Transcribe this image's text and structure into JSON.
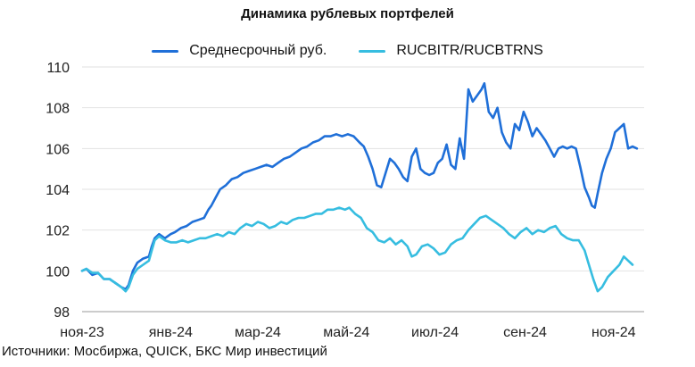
{
  "chart_data": {
    "type": "line",
    "title": "Динамика рублевых портфелей",
    "source": "Источники: Мосбиржа, QUICK, БКС Мир инвестиций",
    "ylim": [
      98,
      110
    ],
    "yticks": [
      98,
      100,
      102,
      104,
      106,
      108,
      110
    ],
    "xlim": [
      "2023-11-01",
      "2024-11-22"
    ],
    "xticks": [
      {
        "date": "2023-11-01",
        "label": "ноя-23"
      },
      {
        "date": "2024-01-01",
        "label": "янв-24"
      },
      {
        "date": "2024-03-01",
        "label": "мар-24"
      },
      {
        "date": "2024-05-01",
        "label": "май-24"
      },
      {
        "date": "2024-07-01",
        "label": "июл-24"
      },
      {
        "date": "2024-09-01",
        "label": "сен-24"
      },
      {
        "date": "2024-11-01",
        "label": "ноя-24"
      }
    ],
    "grid": "horizontal",
    "legend_position": "top",
    "series": [
      {
        "name": "Среднесрочный руб.",
        "color": "#1f6fd8",
        "points": [
          [
            "2023-11-01",
            100.0
          ],
          [
            "2023-11-04",
            100.1
          ],
          [
            "2023-11-08",
            99.8
          ],
          [
            "2023-11-12",
            99.9
          ],
          [
            "2023-11-16",
            99.6
          ],
          [
            "2023-11-20",
            99.6
          ],
          [
            "2023-11-24",
            99.4
          ],
          [
            "2023-11-28",
            99.2
          ],
          [
            "2023-12-01",
            99.1
          ],
          [
            "2023-12-03",
            99.3
          ],
          [
            "2023-12-06",
            100.0
          ],
          [
            "2023-12-09",
            100.4
          ],
          [
            "2023-12-13",
            100.6
          ],
          [
            "2023-12-17",
            100.7
          ],
          [
            "2023-12-19",
            101.2
          ],
          [
            "2023-12-21",
            101.6
          ],
          [
            "2023-12-24",
            101.8
          ],
          [
            "2023-12-28",
            101.6
          ],
          [
            "2024-01-01",
            101.8
          ],
          [
            "2024-01-04",
            101.9
          ],
          [
            "2024-01-08",
            102.1
          ],
          [
            "2024-01-12",
            102.2
          ],
          [
            "2024-01-16",
            102.4
          ],
          [
            "2024-01-20",
            102.5
          ],
          [
            "2024-01-24",
            102.6
          ],
          [
            "2024-01-27",
            103.0
          ],
          [
            "2024-01-29",
            103.2
          ],
          [
            "2024-02-01",
            103.6
          ],
          [
            "2024-02-04",
            104.0
          ],
          [
            "2024-02-08",
            104.2
          ],
          [
            "2024-02-12",
            104.5
          ],
          [
            "2024-02-16",
            104.6
          ],
          [
            "2024-02-20",
            104.8
          ],
          [
            "2024-02-24",
            104.9
          ],
          [
            "2024-02-28",
            105.0
          ],
          [
            "2024-03-03",
            105.1
          ],
          [
            "2024-03-07",
            105.2
          ],
          [
            "2024-03-11",
            105.1
          ],
          [
            "2024-03-15",
            105.3
          ],
          [
            "2024-03-19",
            105.5
          ],
          [
            "2024-03-23",
            105.6
          ],
          [
            "2024-03-27",
            105.8
          ],
          [
            "2024-03-31",
            106.0
          ],
          [
            "2024-04-04",
            106.1
          ],
          [
            "2024-04-08",
            106.3
          ],
          [
            "2024-04-12",
            106.4
          ],
          [
            "2024-04-16",
            106.6
          ],
          [
            "2024-04-20",
            106.6
          ],
          [
            "2024-04-24",
            106.7
          ],
          [
            "2024-04-28",
            106.6
          ],
          [
            "2024-05-02",
            106.7
          ],
          [
            "2024-05-06",
            106.6
          ],
          [
            "2024-05-10",
            106.3
          ],
          [
            "2024-05-13",
            106.1
          ],
          [
            "2024-05-16",
            105.6
          ],
          [
            "2024-05-19",
            105.0
          ],
          [
            "2024-05-22",
            104.2
          ],
          [
            "2024-05-25",
            104.1
          ],
          [
            "2024-05-28",
            104.8
          ],
          [
            "2024-05-31",
            105.5
          ],
          [
            "2024-06-03",
            105.3
          ],
          [
            "2024-06-06",
            105.0
          ],
          [
            "2024-06-09",
            104.6
          ],
          [
            "2024-06-12",
            104.4
          ],
          [
            "2024-06-15",
            105.6
          ],
          [
            "2024-06-18",
            106.0
          ],
          [
            "2024-06-21",
            105.0
          ],
          [
            "2024-06-24",
            104.8
          ],
          [
            "2024-06-27",
            104.7
          ],
          [
            "2024-06-30",
            104.8
          ],
          [
            "2024-07-03",
            105.3
          ],
          [
            "2024-07-06",
            105.5
          ],
          [
            "2024-07-09",
            106.2
          ],
          [
            "2024-07-12",
            105.2
          ],
          [
            "2024-07-15",
            105.0
          ],
          [
            "2024-07-18",
            106.5
          ],
          [
            "2024-07-21",
            105.5
          ],
          [
            "2024-07-24",
            108.9
          ],
          [
            "2024-07-27",
            108.3
          ],
          [
            "2024-07-30",
            108.6
          ],
          [
            "2024-08-02",
            108.9
          ],
          [
            "2024-08-04",
            109.2
          ],
          [
            "2024-08-07",
            107.8
          ],
          [
            "2024-08-10",
            107.5
          ],
          [
            "2024-08-13",
            108.0
          ],
          [
            "2024-08-16",
            106.8
          ],
          [
            "2024-08-19",
            106.3
          ],
          [
            "2024-08-22",
            106.0
          ],
          [
            "2024-08-25",
            107.2
          ],
          [
            "2024-08-28",
            106.9
          ],
          [
            "2024-08-31",
            107.8
          ],
          [
            "2024-09-03",
            107.3
          ],
          [
            "2024-09-06",
            106.6
          ],
          [
            "2024-09-09",
            107.0
          ],
          [
            "2024-09-12",
            106.7
          ],
          [
            "2024-09-15",
            106.4
          ],
          [
            "2024-09-18",
            106.0
          ],
          [
            "2024-09-21",
            105.6
          ],
          [
            "2024-09-24",
            106.0
          ],
          [
            "2024-09-27",
            106.1
          ],
          [
            "2024-09-30",
            106.0
          ],
          [
            "2024-10-03",
            106.1
          ],
          [
            "2024-10-06",
            106.0
          ],
          [
            "2024-10-09",
            105.1
          ],
          [
            "2024-10-12",
            104.1
          ],
          [
            "2024-10-15",
            103.6
          ],
          [
            "2024-10-17",
            103.2
          ],
          [
            "2024-10-19",
            103.1
          ],
          [
            "2024-10-21",
            103.8
          ],
          [
            "2024-10-24",
            104.8
          ],
          [
            "2024-10-27",
            105.5
          ],
          [
            "2024-10-30",
            106.0
          ],
          [
            "2024-11-02",
            106.8
          ],
          [
            "2024-11-05",
            107.0
          ],
          [
            "2024-11-08",
            107.2
          ],
          [
            "2024-11-11",
            106.0
          ],
          [
            "2024-11-14",
            106.1
          ],
          [
            "2024-11-17",
            106.0
          ]
        ]
      },
      {
        "name": "RUCBITR/RUCBTRNS",
        "color": "#36bde0",
        "points": [
          [
            "2023-11-01",
            100.0
          ],
          [
            "2023-11-04",
            100.1
          ],
          [
            "2023-11-08",
            99.9
          ],
          [
            "2023-11-12",
            99.9
          ],
          [
            "2023-11-16",
            99.6
          ],
          [
            "2023-11-20",
            99.6
          ],
          [
            "2023-11-24",
            99.4
          ],
          [
            "2023-11-28",
            99.2
          ],
          [
            "2023-12-01",
            99.0
          ],
          [
            "2023-12-03",
            99.2
          ],
          [
            "2023-12-06",
            99.8
          ],
          [
            "2023-12-09",
            100.1
          ],
          [
            "2023-12-13",
            100.3
          ],
          [
            "2023-12-17",
            100.5
          ],
          [
            "2023-12-19",
            101.0
          ],
          [
            "2023-12-21",
            101.5
          ],
          [
            "2023-12-24",
            101.7
          ],
          [
            "2023-12-28",
            101.5
          ],
          [
            "2024-01-01",
            101.4
          ],
          [
            "2024-01-05",
            101.4
          ],
          [
            "2024-01-09",
            101.5
          ],
          [
            "2024-01-13",
            101.4
          ],
          [
            "2024-01-17",
            101.5
          ],
          [
            "2024-01-21",
            101.6
          ],
          [
            "2024-01-25",
            101.6
          ],
          [
            "2024-01-29",
            101.7
          ],
          [
            "2024-02-02",
            101.8
          ],
          [
            "2024-02-06",
            101.7
          ],
          [
            "2024-02-10",
            101.9
          ],
          [
            "2024-02-14",
            101.8
          ],
          [
            "2024-02-18",
            102.1
          ],
          [
            "2024-02-22",
            102.3
          ],
          [
            "2024-02-26",
            102.2
          ],
          [
            "2024-03-01",
            102.4
          ],
          [
            "2024-03-05",
            102.3
          ],
          [
            "2024-03-09",
            102.1
          ],
          [
            "2024-03-13",
            102.2
          ],
          [
            "2024-03-17",
            102.4
          ],
          [
            "2024-03-21",
            102.3
          ],
          [
            "2024-03-25",
            102.5
          ],
          [
            "2024-03-29",
            102.6
          ],
          [
            "2024-04-02",
            102.6
          ],
          [
            "2024-04-06",
            102.7
          ],
          [
            "2024-04-10",
            102.8
          ],
          [
            "2024-04-14",
            102.8
          ],
          [
            "2024-04-18",
            103.0
          ],
          [
            "2024-04-22",
            103.0
          ],
          [
            "2024-04-26",
            103.1
          ],
          [
            "2024-04-30",
            103.0
          ],
          [
            "2024-05-03",
            103.1
          ],
          [
            "2024-05-07",
            102.8
          ],
          [
            "2024-05-11",
            102.6
          ],
          [
            "2024-05-15",
            102.1
          ],
          [
            "2024-05-19",
            101.9
          ],
          [
            "2024-05-23",
            101.5
          ],
          [
            "2024-05-27",
            101.4
          ],
          [
            "2024-05-31",
            101.6
          ],
          [
            "2024-06-04",
            101.3
          ],
          [
            "2024-06-08",
            101.5
          ],
          [
            "2024-06-12",
            101.2
          ],
          [
            "2024-06-15",
            100.7
          ],
          [
            "2024-06-18",
            100.8
          ],
          [
            "2024-06-22",
            101.2
          ],
          [
            "2024-06-26",
            101.3
          ],
          [
            "2024-06-30",
            101.1
          ],
          [
            "2024-07-04",
            100.8
          ],
          [
            "2024-07-08",
            100.9
          ],
          [
            "2024-07-12",
            101.3
          ],
          [
            "2024-07-16",
            101.5
          ],
          [
            "2024-07-20",
            101.6
          ],
          [
            "2024-07-24",
            102.0
          ],
          [
            "2024-07-28",
            102.3
          ],
          [
            "2024-08-01",
            102.6
          ],
          [
            "2024-08-05",
            102.7
          ],
          [
            "2024-08-09",
            102.5
          ],
          [
            "2024-08-13",
            102.3
          ],
          [
            "2024-08-17",
            102.1
          ],
          [
            "2024-08-21",
            101.8
          ],
          [
            "2024-08-25",
            101.6
          ],
          [
            "2024-08-29",
            101.9
          ],
          [
            "2024-09-02",
            102.1
          ],
          [
            "2024-09-06",
            101.8
          ],
          [
            "2024-09-10",
            102.0
          ],
          [
            "2024-09-14",
            101.9
          ],
          [
            "2024-09-18",
            102.1
          ],
          [
            "2024-09-22",
            102.2
          ],
          [
            "2024-09-26",
            101.8
          ],
          [
            "2024-09-30",
            101.6
          ],
          [
            "2024-10-04",
            101.5
          ],
          [
            "2024-10-08",
            101.5
          ],
          [
            "2024-10-12",
            101.0
          ],
          [
            "2024-10-15",
            100.3
          ],
          [
            "2024-10-18",
            99.6
          ],
          [
            "2024-10-21",
            99.0
          ],
          [
            "2024-10-24",
            99.2
          ],
          [
            "2024-10-28",
            99.7
          ],
          [
            "2024-11-01",
            100.0
          ],
          [
            "2024-11-05",
            100.3
          ],
          [
            "2024-11-08",
            100.7
          ],
          [
            "2024-11-11",
            100.5
          ],
          [
            "2024-11-14",
            100.3
          ]
        ]
      }
    ]
  }
}
